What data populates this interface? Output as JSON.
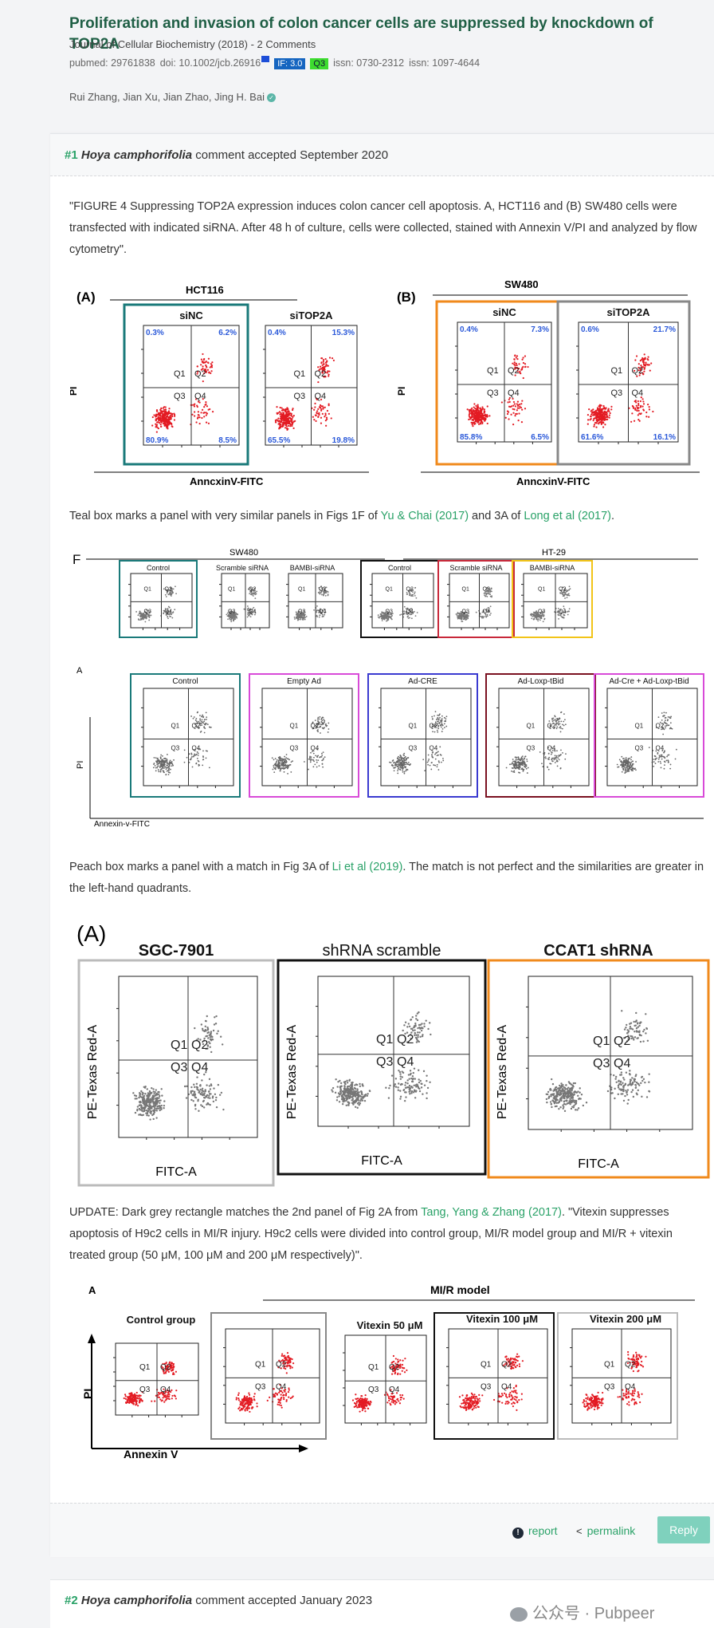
{
  "paper": {
    "title": "Proliferation and invasion of colon cancer cells are suppressed by knockdown of TOP2A",
    "journal_line": "Journal of Cellular Biochemistry (2018) - 2 Comments",
    "pubmed": "pubmed: 29761838",
    "doi": "doi: 10.1002/jcb.26916",
    "impact_factor": "IF: 3.0",
    "quartile": "Q3",
    "issn1": "issn: 0730-2312",
    "issn2": "issn: 1097-4644",
    "authors": "Rui Zhang, Jian Xu, Jian Zhao, Jing H. Bai"
  },
  "comment1": {
    "number": "#1",
    "commenter": "Hoya camphorifolia",
    "status": "comment accepted September 2020",
    "quote": "\"FIGURE 4 Suppressing TOP2A expression induces colon cancer cell apoptosis. A, HCT116 and (B) SW480 cells were transfected with indicated siRNA. After 48 h of culture, cells were collected, stained with Annexin V/PI and analyzed by flow cytometry\".",
    "teal_text_1": "Teal box marks a panel with very similar panels in Figs 1F of ",
    "teal_link_1": "Yu & Chai (2017)",
    "teal_text_2": " and 3A of ",
    "teal_link_2": "Long et al (2017)",
    "teal_text_3": ".",
    "peach_text_1": "Peach box marks a panel with a match in Fig 3A of ",
    "peach_link": "Li et al (2019)",
    "peach_text_2": ". The match is not perfect and the similarities are greater in the left-hand quadrants.",
    "update_text_1": "UPDATE: Dark grey rectangle matches the 2nd panel of Fig 2A from ",
    "update_link": "Tang, Yang & Zhang (2017)",
    "update_text_2": ". \"Vitexin suppresses apoptosis of H9c2 cells in MI/R injury. H9c2 cells were divided into control group, MI/R model group and MI/R + vitexin treated group (50 μM, 100 μM and 200 μM respectively)\".",
    "report": "report",
    "permalink": "permalink",
    "reply": "Reply"
  },
  "comment2": {
    "number": "#2",
    "commenter": "Hoya camphorifolia",
    "status": "comment accepted January 2023"
  },
  "watermark": "公众号 · Pubpeer",
  "fig1": {
    "label_a": "(A)",
    "label_b": "(B)",
    "group_a": "HCT116",
    "group_b": "SW480",
    "panels": [
      "siNC",
      "siTOP2A",
      "siNC",
      "siTOP2A"
    ],
    "pct": [
      [
        "0.3%",
        "6.2%",
        "80.9%",
        "8.5%"
      ],
      [
        "0.4%",
        "15.3%",
        "65.5%",
        "19.8%"
      ],
      [
        "0.4%",
        "7.3%",
        "85.8%",
        "6.5%"
      ],
      [
        "0.6%",
        "21.7%",
        "61.6%",
        "16.1%"
      ]
    ],
    "ylabel": "PI",
    "xlabel": "AnncxinV-FITC",
    "q": [
      "Q1",
      "Q2",
      "Q3",
      "Q4"
    ]
  },
  "fig2": {
    "label_f": "F",
    "label_a": "A",
    "group_1": "SW480",
    "group_2": "HT-29",
    "row1_panels": [
      "Control",
      "Scramble siRNA",
      "BAMBI-siRNA",
      "Control",
      "Scramble siRNA",
      "BAMBI-siRNA"
    ],
    "row2_panels": [
      "Control",
      "Empty Ad",
      "Ad-CRE",
      "Ad-Loxp-tBid",
      "Ad-Cre + Ad-Loxp-tBid"
    ],
    "ylabel": "PI",
    "xlabel": "Annexin-v-FITC"
  },
  "fig3": {
    "label": "(A)",
    "panels": [
      "SGC-7901",
      "shRNA scramble",
      "CCAT1 shRNA"
    ],
    "ylabel": "PE-Texas Red-A",
    "xlabel": "FITC-A"
  },
  "fig4": {
    "label": "A",
    "group": "MI/R model",
    "panels": [
      "Control group",
      "",
      "Vitexin 50 μM",
      "Vitexin 100 μM",
      "Vitexin 200 μM"
    ],
    "ylabel": "PI",
    "xlabel": "Annexin V"
  },
  "colors": {
    "teal": "#1a7a7a",
    "orange": "#f08a1c",
    "grey": "#888888",
    "magenta": "#d84ad8",
    "blue": "#3a3ad0",
    "dark_red": "#7a1020",
    "red_box": "#c8283a",
    "yellow": "#f2c418",
    "accent_green": "#2aa268",
    "title_green": "#1f5f45"
  }
}
